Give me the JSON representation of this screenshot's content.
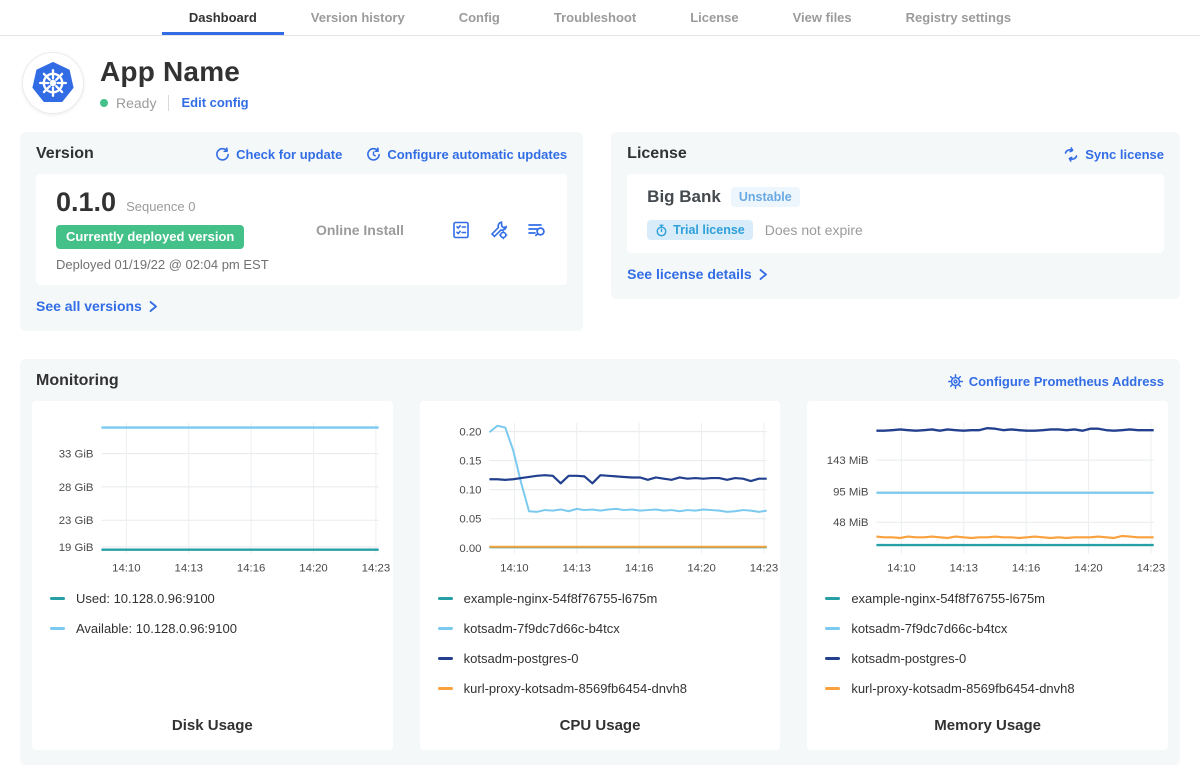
{
  "nav": {
    "tabs": [
      {
        "label": "Dashboard",
        "active": true
      },
      {
        "label": "Version history",
        "active": false
      },
      {
        "label": "Config",
        "active": false
      },
      {
        "label": "Troubleshoot",
        "active": false
      },
      {
        "label": "License",
        "active": false
      },
      {
        "label": "View files",
        "active": false
      },
      {
        "label": "Registry settings",
        "active": false
      }
    ]
  },
  "header": {
    "app_name": "App Name",
    "status": "Ready",
    "edit_config": "Edit config"
  },
  "version_card": {
    "title": "Version",
    "check_update": "Check for update",
    "configure_updates": "Configure automatic updates",
    "version": "0.1.0",
    "sequence": "Sequence 0",
    "deployed_badge": "Currently deployed version",
    "deployed_at": "Deployed 01/19/22 @ 02:04 pm EST",
    "install_type": "Online Install",
    "see_all": "See all versions"
  },
  "license_card": {
    "title": "License",
    "sync": "Sync license",
    "name": "Big Bank",
    "channel": "Unstable",
    "type_badge": "Trial license",
    "expiry": "Does not expire",
    "details": "See license details"
  },
  "monitoring": {
    "title": "Monitoring",
    "configure_prometheus": "Configure Prometheus Address",
    "colors": {
      "teal": "#26a0a5",
      "light_blue": "#7ac9ee",
      "navy": "#23408f",
      "orange": "#f9a13c"
    },
    "charts": [
      {
        "title": "Disk Usage",
        "type": "line",
        "x_ticks": [
          "14:10",
          "14:13",
          "14:16",
          "14:20",
          "14:23"
        ],
        "ymin": 18,
        "ymax": 37.6,
        "y_ticks": [
          {
            "value": 19,
            "label": "19 GiB"
          },
          {
            "value": 23,
            "label": "23 GiB"
          },
          {
            "value": 28,
            "label": "28 GiB"
          },
          {
            "value": 33,
            "label": "33 GiB"
          }
        ],
        "series": [
          {
            "name": "Used: 10.128.0.96:9100",
            "color": "#26a0a5",
            "width": 2.4,
            "flat": 18.6
          },
          {
            "name": "Available: 10.128.0.96:9100",
            "color": "#7ac9ee",
            "width": 2.4,
            "flat": 36.9
          }
        ]
      },
      {
        "title": "CPU Usage",
        "type": "line",
        "x_ticks": [
          "14:10",
          "14:13",
          "14:16",
          "14:20",
          "14:23"
        ],
        "ymin": -0.01,
        "ymax": 0.215,
        "y_ticks": [
          {
            "value": 0.0,
            "label": "0.00"
          },
          {
            "value": 0.05,
            "label": "0.05"
          },
          {
            "value": 0.1,
            "label": "0.10"
          },
          {
            "value": 0.15,
            "label": "0.15"
          },
          {
            "value": 0.2,
            "label": "0.20"
          }
        ],
        "series": [
          {
            "name": "example-nginx-54f8f76755-l675m",
            "color": "#26a0a5",
            "width": 2,
            "flat": 0.001
          },
          {
            "name": "kotsadm-7f9dc7d66c-b4tcx",
            "color": "#7ac9ee",
            "width": 2,
            "values": [
              0.199,
              0.21,
              0.207,
              0.168,
              0.112,
              0.063,
              0.062,
              0.065,
              0.064,
              0.066,
              0.063,
              0.067,
              0.065,
              0.066,
              0.064,
              0.066,
              0.067,
              0.065,
              0.066,
              0.064,
              0.065,
              0.066,
              0.064,
              0.065,
              0.063,
              0.065,
              0.064,
              0.066,
              0.065,
              0.064,
              0.062,
              0.063,
              0.065,
              0.064,
              0.062,
              0.064
            ]
          },
          {
            "name": "kotsadm-postgres-0",
            "color": "#23408f",
            "width": 2.2,
            "values": [
              0.118,
              0.118,
              0.117,
              0.118,
              0.12,
              0.122,
              0.124,
              0.125,
              0.124,
              0.111,
              0.124,
              0.124,
              0.123,
              0.111,
              0.125,
              0.124,
              0.123,
              0.122,
              0.121,
              0.121,
              0.117,
              0.121,
              0.119,
              0.117,
              0.121,
              0.119,
              0.12,
              0.119,
              0.12,
              0.12,
              0.117,
              0.12,
              0.119,
              0.115,
              0.119,
              0.119
            ]
          },
          {
            "name": "kurl-proxy-kotsadm-8569fb6454-dnvh8",
            "color": "#f9a13c",
            "width": 2,
            "flat": 0.002
          }
        ]
      },
      {
        "title": "Memory Usage",
        "type": "line",
        "x_ticks": [
          "14:10",
          "14:13",
          "14:16",
          "14:20",
          "14:23"
        ],
        "ymin": 0,
        "ymax": 200,
        "y_ticks": [
          {
            "value": 48,
            "label": "48 MiB"
          },
          {
            "value": 95,
            "label": "95 MiB"
          },
          {
            "value": 143,
            "label": "143 MiB"
          }
        ],
        "series": [
          {
            "name": "example-nginx-54f8f76755-l675m",
            "color": "#26a0a5",
            "width": 2.4,
            "flat": 13
          },
          {
            "name": "kotsadm-7f9dc7d66c-b4tcx",
            "color": "#7ac9ee",
            "width": 2.2,
            "flat": 93
          },
          {
            "name": "kotsadm-postgres-0",
            "color": "#23408f",
            "width": 2.4,
            "values": [
              188,
              188,
              189,
              190,
              189,
              188,
              189,
              190,
              188,
              190,
              189,
              188,
              189,
              189,
              192,
              191,
              189,
              190,
              189,
              188,
              188,
              189,
              190,
              190,
              189,
              190,
              188,
              191,
              191,
              189,
              188,
              189,
              190,
              189,
              189,
              189
            ]
          },
          {
            "name": "kurl-proxy-kotsadm-8569fb6454-dnvh8",
            "color": "#f9a13c",
            "width": 2.2,
            "values": [
              26,
              25,
              25,
              24,
              26,
              25,
              25,
              26,
              25,
              24,
              26,
              25,
              24,
              25,
              25,
              26,
              25,
              25,
              24,
              25,
              26,
              25,
              24,
              25,
              24,
              25,
              25,
              25,
              26,
              25,
              24,
              27,
              26,
              25,
              25,
              25
            ]
          }
        ]
      }
    ]
  }
}
